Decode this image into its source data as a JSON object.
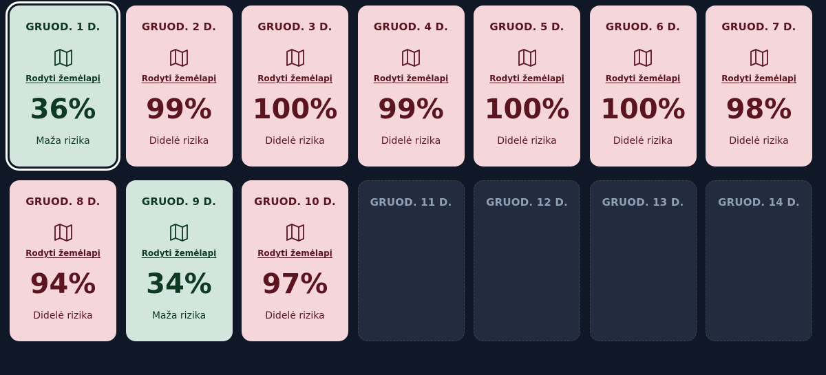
{
  "days": [
    {
      "date": "GRUOD. 1 D.",
      "map_label": "Rodyti žemėlapį",
      "percent": "36%",
      "risk": "Maža rizika",
      "level": "low",
      "selected": true
    },
    {
      "date": "GRUOD. 2 D.",
      "map_label": "Rodyti žemėlapį",
      "percent": "99%",
      "risk": "Didelė rizika",
      "level": "high"
    },
    {
      "date": "GRUOD. 3 D.",
      "map_label": "Rodyti žemėlapį",
      "percent": "100%",
      "risk": "Didelė rizika",
      "level": "high"
    },
    {
      "date": "GRUOD. 4 D.",
      "map_label": "Rodyti žemėlapį",
      "percent": "99%",
      "risk": "Didelė rizika",
      "level": "high"
    },
    {
      "date": "GRUOD. 5 D.",
      "map_label": "Rodyti žemėlapį",
      "percent": "100%",
      "risk": "Didelė rizika",
      "level": "high"
    },
    {
      "date": "GRUOD. 6 D.",
      "map_label": "Rodyti žemėlapį",
      "percent": "100%",
      "risk": "Didelė rizika",
      "level": "high"
    },
    {
      "date": "GRUOD. 7 D.",
      "map_label": "Rodyti žemėlapį",
      "percent": "98%",
      "risk": "Didelė rizika",
      "level": "high"
    },
    {
      "date": "GRUOD. 8 D.",
      "map_label": "Rodyti žemėlapį",
      "percent": "94%",
      "risk": "Didelė rizika",
      "level": "high"
    },
    {
      "date": "GRUOD. 9 D.",
      "map_label": "Rodyti žemėlapį",
      "percent": "34%",
      "risk": "Maža rizika",
      "level": "low"
    },
    {
      "date": "GRUOD. 10 D.",
      "map_label": "Rodyti žemėlapį",
      "percent": "97%",
      "risk": "Didelė rizika",
      "level": "high"
    },
    {
      "date": "GRUOD. 11 D.",
      "level": "empty"
    },
    {
      "date": "GRUOD. 12 D.",
      "level": "empty"
    },
    {
      "date": "GRUOD. 13 D.",
      "level": "empty"
    },
    {
      "date": "GRUOD. 14 D.",
      "level": "empty"
    }
  ],
  "icons": {
    "map": "map-icon"
  },
  "colors": {
    "background": "#101828",
    "high_bg": "#f5d6da",
    "high_text": "#5a1520",
    "low_bg": "#d2e6de",
    "low_text": "#0e3a24",
    "empty_bg": "#222c3e",
    "empty_text": "#8e9fb6"
  }
}
